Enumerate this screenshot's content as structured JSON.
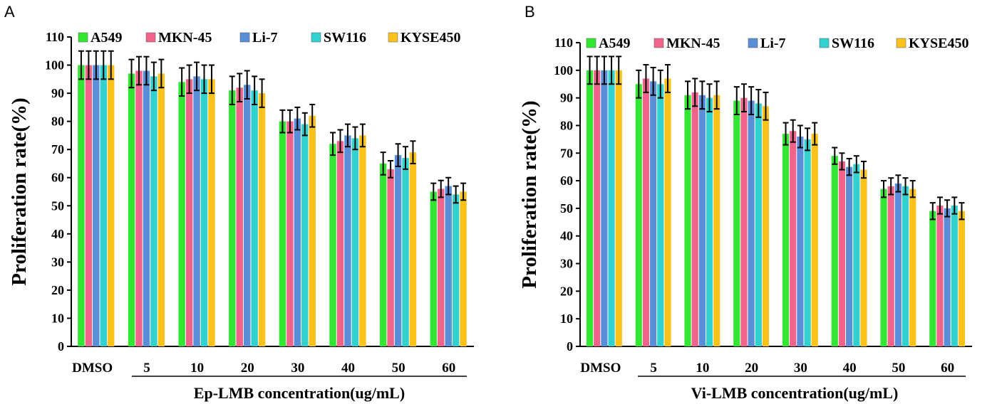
{
  "colors": {
    "A549": "#33e633",
    "MKN-45": "#f0648c",
    "Li-7": "#5a8fd8",
    "SW116": "#33d0d0",
    "KYSE450": "#fcc21c",
    "error_bar": "#000000",
    "axis": "#000000"
  },
  "chart_data": [
    {
      "type": "bar",
      "panel": "A",
      "title": "",
      "xlabel": "Ep-LMB concentration(ug/mL)",
      "ylabel": "Proliferation rate(%)",
      "ylim": [
        0,
        110
      ],
      "yticks": [
        "0",
        "10",
        "20",
        "30",
        "40",
        "50",
        "60",
        "70",
        "80",
        "90",
        "100",
        "110"
      ],
      "grid": false,
      "legend": "top",
      "categories": [
        "DMSO",
        "5",
        "10",
        "20",
        "30",
        "40",
        "50",
        "60"
      ],
      "series": [
        {
          "name": "A549",
          "values": [
            100,
            97,
            94,
            91,
            80,
            72,
            65,
            55
          ],
          "errors": [
            5,
            5,
            5,
            5,
            4,
            4,
            4,
            3
          ]
        },
        {
          "name": "MKN-45",
          "values": [
            100,
            98,
            95,
            92,
            80,
            73,
            63,
            56
          ],
          "errors": [
            5,
            5,
            5,
            5,
            4,
            4,
            3,
            3
          ]
        },
        {
          "name": "Li-7",
          "values": [
            100,
            98,
            96,
            93,
            81,
            75,
            68,
            57
          ],
          "errors": [
            5,
            5,
            5,
            5,
            4,
            4,
            4,
            3
          ]
        },
        {
          "name": "SW116",
          "values": [
            100,
            96,
            95,
            91,
            79,
            74,
            67,
            54
          ],
          "errors": [
            5,
            5,
            5,
            5,
            4,
            4,
            4,
            3
          ]
        },
        {
          "name": "KYSE450",
          "values": [
            100,
            97,
            95,
            90,
            82,
            75,
            69,
            55
          ],
          "errors": [
            5,
            5,
            5,
            5,
            4,
            4,
            4,
            3
          ]
        }
      ]
    },
    {
      "type": "bar",
      "panel": "B",
      "title": "",
      "xlabel": "Vi-LMB concentration(ug/mL)",
      "ylabel": "Proliferation rate(%)",
      "ylim": [
        0,
        110
      ],
      "yticks": [
        "0",
        "10",
        "20",
        "30",
        "40",
        "50",
        "60",
        "70",
        "80",
        "90",
        "100",
        "110"
      ],
      "grid": false,
      "legend": "top",
      "categories": [
        "DMSO",
        "5",
        "10",
        "20",
        "30",
        "40",
        "50",
        "60"
      ],
      "series": [
        {
          "name": "A549",
          "values": [
            100,
            95,
            91,
            89,
            77,
            69,
            57,
            49
          ],
          "errors": [
            5,
            5,
            5,
            5,
            4,
            3,
            3,
            3
          ]
        },
        {
          "name": "MKN-45",
          "values": [
            100,
            97,
            92,
            90,
            78,
            67,
            58,
            51
          ],
          "errors": [
            5,
            5,
            5,
            5,
            4,
            3,
            3,
            3
          ]
        },
        {
          "name": "Li-7",
          "values": [
            100,
            96,
            91,
            89,
            76,
            65,
            59,
            50
          ],
          "errors": [
            5,
            5,
            5,
            5,
            4,
            3,
            3,
            3
          ]
        },
        {
          "name": "SW116",
          "values": [
            100,
            95,
            90,
            88,
            75,
            66,
            58,
            51
          ],
          "errors": [
            5,
            5,
            5,
            5,
            4,
            3,
            3,
            3
          ]
        },
        {
          "name": "KYSE450",
          "values": [
            100,
            97,
            91,
            87,
            77,
            64,
            57,
            49
          ],
          "errors": [
            5,
            5,
            5,
            5,
            4,
            3,
            3,
            3
          ]
        }
      ]
    }
  ]
}
